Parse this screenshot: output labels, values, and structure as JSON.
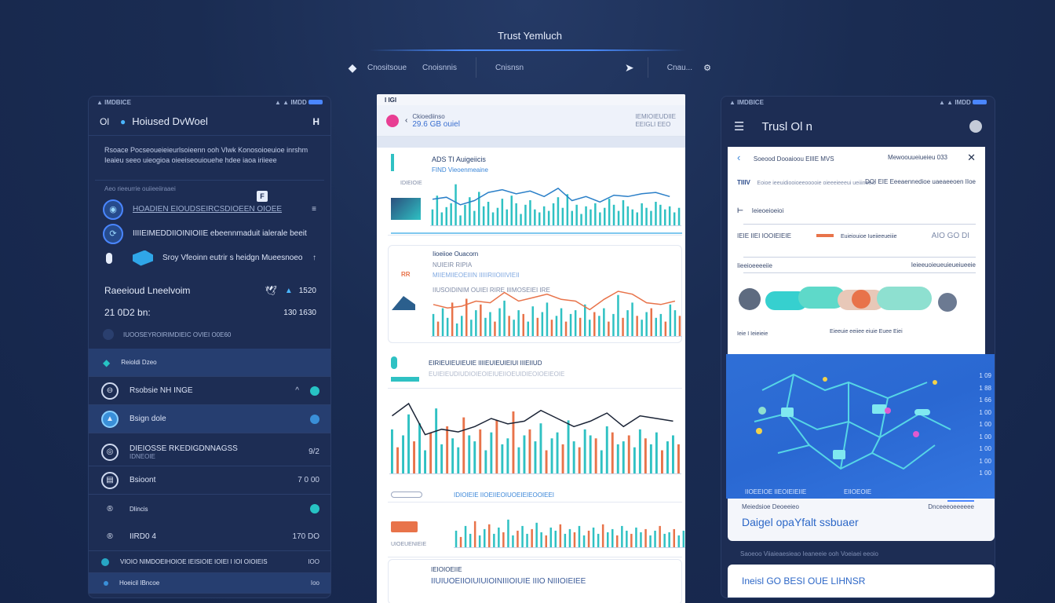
{
  "top": {
    "title": "Trust Yemluch",
    "nav": [
      "Cnositsoue",
      "Cnoisnnis",
      "Cnisnsn"
    ],
    "right_label": "Cnau..."
  },
  "left": {
    "status_left": "▲ IMDBICE",
    "status_right": "▲ ▲ IMDD",
    "header_left": "Ol",
    "header_title": "Hoiused DvWoel",
    "header_right": "H",
    "description": "Rsoace Pocseoueieieurlsoieenn ooh Vlwk Konosoioeuioe inrshm Ieaieu seeo uieogioa oieeiseouiouehe hdee iaoa iriieee",
    "section_label": "Aeo rieeurrie ouiieeiiraaei",
    "rows": [
      {
        "text": "HOADIEN EIOUDSEIRCSDIOEEN OIOEE",
        "end": "≡"
      },
      {
        "text": "IIIIEIMEDDIIOINIOIIE ebeennmaduit ialerale beeit",
        "end": ""
      },
      {
        "text": "Sroy Vfeoinn eutrir s heidgn Mueesnoeo",
        "end": "↑"
      }
    ],
    "stat1": {
      "label": "Raeeioud Lneelvoim",
      "value": "1520"
    },
    "stat2": {
      "label": "21 0D2 bn:",
      "value": "130 1630"
    },
    "small_row": "IUOOSEYROIRIMDIEIC OVIEI O0E60",
    "items": [
      {
        "name": "Reioldi Dzeo",
        "end": ""
      },
      {
        "name": "Rsobsie NH INGE",
        "end": "^"
      },
      {
        "name": "Bsign dole",
        "end": ""
      },
      {
        "name": "DIEIOSSE RKEDIGDNNAGSS",
        "sub": "IDNEOIE",
        "end": "9/2"
      },
      {
        "name": "Bsioont",
        "end": "7 0 00"
      },
      {
        "name": "Dlincis",
        "end": ""
      },
      {
        "name": "IIRD0 4",
        "end": "170 DO"
      },
      {
        "name": "VIOIO NIMDOEIHOIOE IEISIOIE IOIEI I IOI OIOIEIS",
        "end": "IOO"
      },
      {
        "name": "Hoeicil IBncoe",
        "end": "Ioo"
      }
    ]
  },
  "mid": {
    "status_left": "I IGI",
    "header_title": "Ckioediinso",
    "header_sub": "29.6 GB ouiel",
    "header_meta_1": "IEMIOIEUDIIE",
    "header_meta_2": "EEIGLI  EEO",
    "card1_title": "ADS  TI Auigeiicis",
    "card1_sub": "FIND Vieoenmeaine",
    "card1_side": "IDIEIOIE",
    "card2_title": "Iioeiioe Ouacorn",
    "card2_lines": [
      "NUIEIR RIPIA",
      "MIIEMIIEOEIIIN IIIIIRIIOIIIVIEII"
    ],
    "card2_note": "IIUSOIDINIM  OUIEI RIRE  IIIMOSEIEI  IRE",
    "card3_title": "EIRIEUIEUIEUIE  IIIIEUIEUIEIUI  IIIEIIUD",
    "card3_note": "EUIEIEUDIUDIOIEOIEIUEIIOEUIDIEOIOEIEOIE",
    "card4_label": "IDIOIEIE  IIOEIIEOIUOEIEIEOOIEEI",
    "card5_label": "UIOEUENIEIE",
    "card5_title": "IEIOIOEIIE",
    "card5_note": "IIUIUOEIIOIUIUIOINIIIOIUIE IIIO NIIIOIEIEE"
  },
  "right": {
    "status_left": "▲ IMDBICE",
    "status_right": "▲ ▲ IMDD",
    "header_title": "Trusl Ol n",
    "card_header": "Soeood Dooaioou ElIIE MVS",
    "card_header_right": "Mewoouueiueieu 033",
    "row1_left": "TIIIV",
    "row1_mid": "Eoioe ieeuidiooioeeooooie oieeeieeeui ueiiineeio",
    "row1_right": "DOI  EIE  Eeeaennedioe  uaeaeeoen  IIoe",
    "row2": "Ieieoeioeioi",
    "row3_left": "IEIE  IIEI  IOOIEIEIE",
    "row3_mid": "Euieiouioe  Iueiieeueiiie",
    "row3_right": "AIO  GO  DI",
    "row4_left": "Iieeioeeeeiie",
    "row4_right": "Ieieeuoieueuieueiueeie",
    "foot_left": "Ieie I  Ieieieie",
    "foot_right": "Eieeuie eeiiee eiuie  Euee  Eiei",
    "map_ticks": [
      "1 09",
      "1 88",
      "1 66",
      "1 00",
      "1 00",
      "1 00",
      "1 00",
      "1 00",
      "1 00",
      "1 00"
    ],
    "map_label_left": "IIOEEIOE IIEOIEIEIIE",
    "map_label_right": "EIIOEOIE",
    "panel_a_hdr": "Meiedsioe Deoeeieo",
    "panel_a_hdr2": "Dnceeeoeeeeee",
    "panel_a_big": "Daigel opaYfalt ssbuaer",
    "note": "Saoeoo Viiaieaesieao Ieaneeie ooh Voeiaei eeoio",
    "panel_b_big": "Ineisl GO BESI OUE LIHNSR"
  },
  "colors": {
    "background": "#1a2c52",
    "panel": "#1d2d54",
    "accent": "#4a86ff",
    "teal": "#27c3c4",
    "bar_teal": "#2fc1c3",
    "bar_orange": "#e8734a",
    "pink": "#e83e93"
  },
  "chart_data": [
    {
      "type": "bar",
      "title": "ADS  TI Auigeiicis",
      "values": [
        22,
        40,
        18,
        25,
        30,
        55,
        14,
        28,
        38,
        20,
        45,
        26,
        32,
        18,
        24,
        36,
        22,
        40,
        30,
        16,
        28,
        34,
        22,
        18,
        26,
        20,
        30,
        38,
        24,
        42,
        20,
        28,
        16,
        26,
        22,
        30,
        18,
        24,
        36,
        28,
        20,
        34,
        26,
        22,
        18,
        30,
        24,
        20,
        32,
        28,
        22,
        26,
        18,
        24
      ]
    },
    {
      "type": "bar",
      "title": "Iioeiioe Ouacorn",
      "values": [
        24,
        16,
        30,
        20,
        36,
        14,
        22,
        40,
        18,
        28,
        34,
        20,
        26,
        16,
        30,
        38,
        22,
        18,
        28,
        24,
        16,
        32,
        20,
        26,
        36,
        18,
        22,
        30,
        16,
        24,
        28,
        20,
        34,
        18,
        26,
        22,
        30,
        16,
        24,
        44,
        20,
        28,
        36,
        22,
        18,
        26,
        30,
        20,
        24,
        16,
        34,
        28,
        22
      ]
    },
    {
      "type": "bar",
      "title": "EIRIEUIEUIEUIE",
      "values": [
        30,
        18,
        26,
        40,
        22,
        34,
        16,
        28,
        44,
        20,
        32,
        24,
        18,
        38,
        26,
        22,
        30,
        16,
        28,
        36,
        20,
        24,
        42,
        18,
        26,
        30,
        22,
        34,
        16,
        24,
        28,
        20,
        36,
        22,
        18,
        30,
        26,
        24,
        16,
        32,
        28,
        20,
        22,
        26,
        18,
        30,
        24,
        20,
        28,
        16,
        22,
        26,
        20
      ]
    },
    {
      "type": "bar",
      "title": "IEIOIOEIIE",
      "values": [
        22,
        14,
        28,
        18,
        34,
        16,
        24,
        30,
        18,
        26,
        20,
        36,
        16,
        22,
        28,
        18,
        24,
        32,
        20,
        16,
        26,
        22,
        30,
        18,
        24,
        20,
        28,
        16,
        22,
        26,
        18,
        30,
        20,
        24,
        16,
        28,
        22,
        18,
        26,
        20,
        24,
        16,
        22,
        28,
        18,
        20,
        24,
        16,
        22,
        18,
        20,
        16,
        18
      ]
    }
  ]
}
